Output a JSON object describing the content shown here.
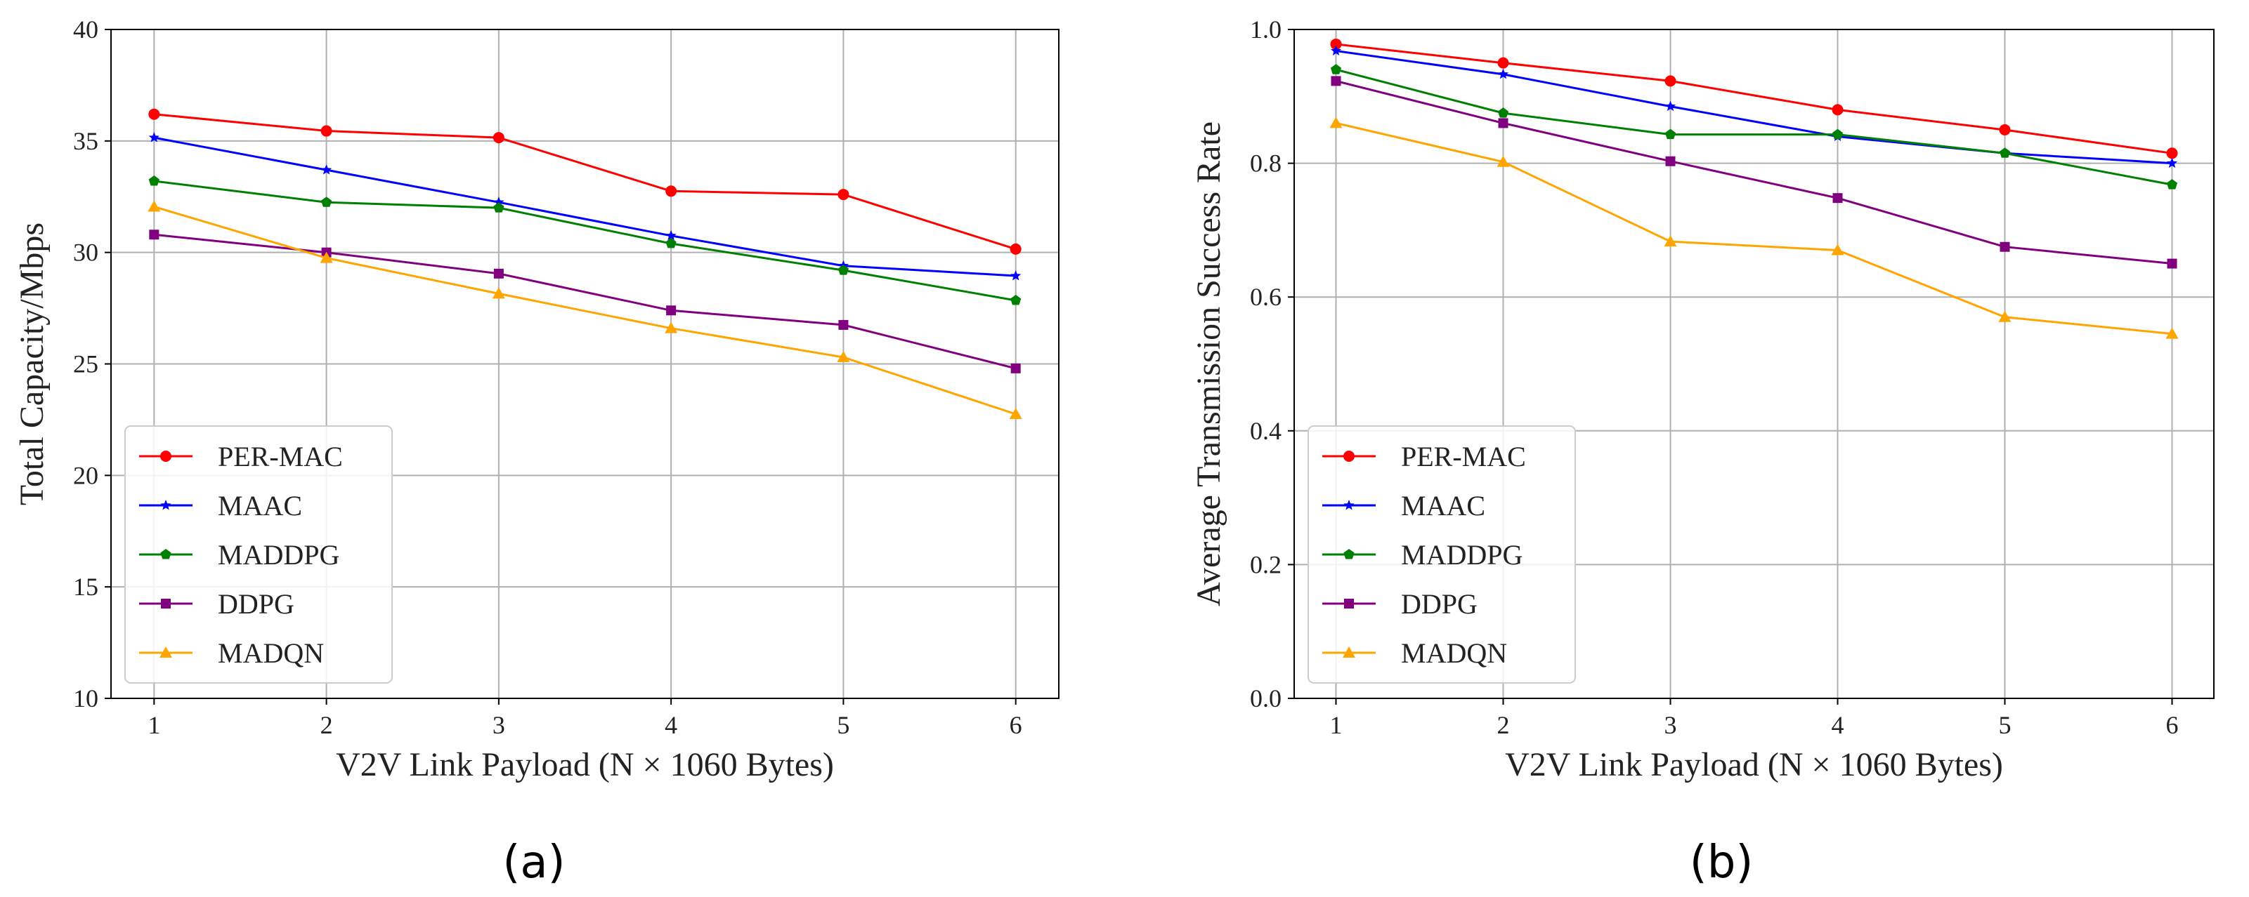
{
  "chart_data": [
    {
      "panel_label": "(a)",
      "type": "line",
      "categories": [
        "1",
        "2",
        "3",
        "4",
        "5",
        "6"
      ],
      "x": [
        1,
        2,
        3,
        4,
        5,
        6
      ],
      "xlabel": "V2V Link Payload (N × 1060 Bytes)",
      "ylabel": "Total Capacity/Mbps",
      "xlim": [
        0.75,
        6.25
      ],
      "ylim": [
        10,
        40
      ],
      "yticks": [
        "10",
        "15",
        "20",
        "25",
        "30",
        "35",
        "40"
      ],
      "yticks_values": [
        10,
        15,
        20,
        25,
        30,
        35,
        40
      ],
      "grid": true,
      "legend_position": "lower-left",
      "series": [
        {
          "name": "PER-MAC",
          "color": "#ff0000",
          "marker": "circle",
          "values": [
            36.2,
            35.45,
            35.15,
            32.75,
            32.6,
            30.15
          ]
        },
        {
          "name": "MAAC",
          "color": "#0000ff",
          "marker": "star",
          "values": [
            35.15,
            33.7,
            32.25,
            30.75,
            29.4,
            28.95
          ]
        },
        {
          "name": "MADDPG",
          "color": "#008000",
          "marker": "pentagon",
          "values": [
            33.2,
            32.25,
            32.0,
            30.4,
            29.2,
            27.85
          ]
        },
        {
          "name": "DDPG",
          "color": "#800080",
          "marker": "square",
          "values": [
            30.8,
            30.0,
            29.05,
            27.4,
            26.75,
            24.8
          ]
        },
        {
          "name": "MADQN",
          "color": "#ffa500",
          "marker": "triangle",
          "values": [
            32.05,
            29.75,
            28.15,
            26.6,
            25.3,
            22.75
          ]
        }
      ]
    },
    {
      "panel_label": "(b)",
      "type": "line",
      "categories": [
        "1",
        "2",
        "3",
        "4",
        "5",
        "6"
      ],
      "x": [
        1,
        2,
        3,
        4,
        5,
        6
      ],
      "xlabel": "V2V Link Payload (N × 1060 Bytes)",
      "ylabel": "Average Transmission Success Rate",
      "xlim": [
        0.75,
        6.25
      ],
      "ylim": [
        0.0,
        1.0
      ],
      "yticks": [
        "0.0",
        "0.2",
        "0.4",
        "0.6",
        "0.8",
        "1.0"
      ],
      "yticks_values": [
        0.0,
        0.2,
        0.4,
        0.6,
        0.8,
        1.0
      ],
      "grid": true,
      "legend_position": "lower-left",
      "series": [
        {
          "name": "PER-MAC",
          "color": "#ff0000",
          "marker": "circle",
          "values": [
            0.978,
            0.95,
            0.923,
            0.88,
            0.85,
            0.815
          ]
        },
        {
          "name": "MAAC",
          "color": "#0000ff",
          "marker": "star",
          "values": [
            0.968,
            0.933,
            0.885,
            0.84,
            0.815,
            0.8
          ]
        },
        {
          "name": "MADDPG",
          "color": "#008000",
          "marker": "pentagon",
          "values": [
            0.94,
            0.875,
            0.843,
            0.843,
            0.815,
            0.768
          ]
        },
        {
          "name": "DDPG",
          "color": "#800080",
          "marker": "square",
          "values": [
            0.923,
            0.86,
            0.803,
            0.748,
            0.675,
            0.65
          ]
        },
        {
          "name": "MADQN",
          "color": "#ffa500",
          "marker": "triangle",
          "values": [
            0.86,
            0.802,
            0.683,
            0.67,
            0.57,
            0.545
          ]
        }
      ]
    }
  ]
}
